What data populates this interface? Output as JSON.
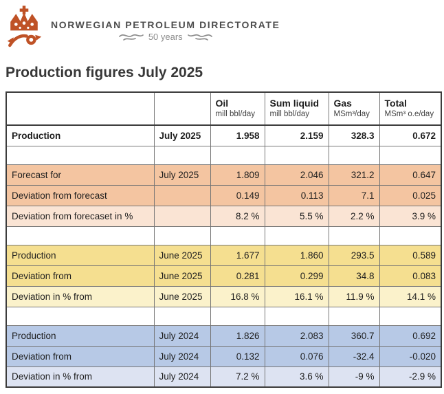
{
  "brand": {
    "name": "NORWEGIAN PETROLEUM DIRECTORATE",
    "anniversary": "50 years",
    "logo_color": "#bf5226",
    "text_color": "#4d4d4d",
    "anniversary_color": "#8c8c8c"
  },
  "page_title": "Production figures July 2025",
  "table": {
    "columns": [
      {
        "label": "Oil",
        "unit": "mill bbl/day"
      },
      {
        "label": "Sum liquid",
        "unit": "mill bbl/day"
      },
      {
        "label": "Gas",
        "unit": "MSm³/day"
      },
      {
        "label": "Total",
        "unit": "MSm³ o.e/day"
      }
    ],
    "palette": {
      "current": "#ffffff",
      "forecast": "#f4c5a1",
      "forecast_pct": "#fae4d4",
      "prev_month": "#f5df90",
      "prev_month_pct": "#fbf2cb",
      "prev_year": "#b7c9e6",
      "prev_year_pct": "#dde3f2"
    },
    "rows": [
      {
        "kind": "data",
        "tint": "current",
        "label": "Production",
        "period": "July 2025",
        "values": [
          "1.958",
          "2.159",
          "328.3",
          "0.672"
        ],
        "bold": true
      },
      {
        "kind": "spacer"
      },
      {
        "kind": "data",
        "tint": "forecast",
        "label": "Forecast for",
        "period": "July 2025",
        "values": [
          "1.809",
          "2.046",
          "321.2",
          "0.647"
        ]
      },
      {
        "kind": "data",
        "tint": "forecast",
        "label": "Deviation from forecast",
        "period": "",
        "values": [
          "0.149",
          "0.113",
          "7.1",
          "0.025"
        ]
      },
      {
        "kind": "data",
        "tint": "forecast_pct",
        "label": "Deviation from forecaset in %",
        "period": "",
        "values": [
          "8.2 %",
          "5.5 %",
          "2.2 %",
          "3.9 %"
        ]
      },
      {
        "kind": "spacer"
      },
      {
        "kind": "data",
        "tint": "prev_month",
        "label": "Production",
        "period": "June 2025",
        "values": [
          "1.677",
          "1.860",
          "293.5",
          "0.589"
        ]
      },
      {
        "kind": "data",
        "tint": "prev_month",
        "label": "Deviation from",
        "period": "June 2025",
        "values": [
          "0.281",
          "0.299",
          "34.8",
          "0.083"
        ]
      },
      {
        "kind": "data",
        "tint": "prev_month_pct",
        "label": "Deviation in % from",
        "period": "June 2025",
        "values": [
          "16.8 %",
          "16.1 %",
          "11.9 %",
          "14.1 %"
        ]
      },
      {
        "kind": "spacer"
      },
      {
        "kind": "data",
        "tint": "prev_year",
        "label": "Production",
        "period": "July 2024",
        "values": [
          "1.826",
          "2.083",
          "360.7",
          "0.692"
        ]
      },
      {
        "kind": "data",
        "tint": "prev_year",
        "label": "Deviation from",
        "period": "July 2024",
        "values": [
          "0.132",
          "0.076",
          "-32.4",
          "-0.020"
        ]
      },
      {
        "kind": "data",
        "tint": "prev_year_pct",
        "label": "Deviation in % from",
        "period": "July 2024",
        "values": [
          "7.2 %",
          "3.6 %",
          "-9 %",
          "-2.9 %"
        ]
      }
    ]
  }
}
